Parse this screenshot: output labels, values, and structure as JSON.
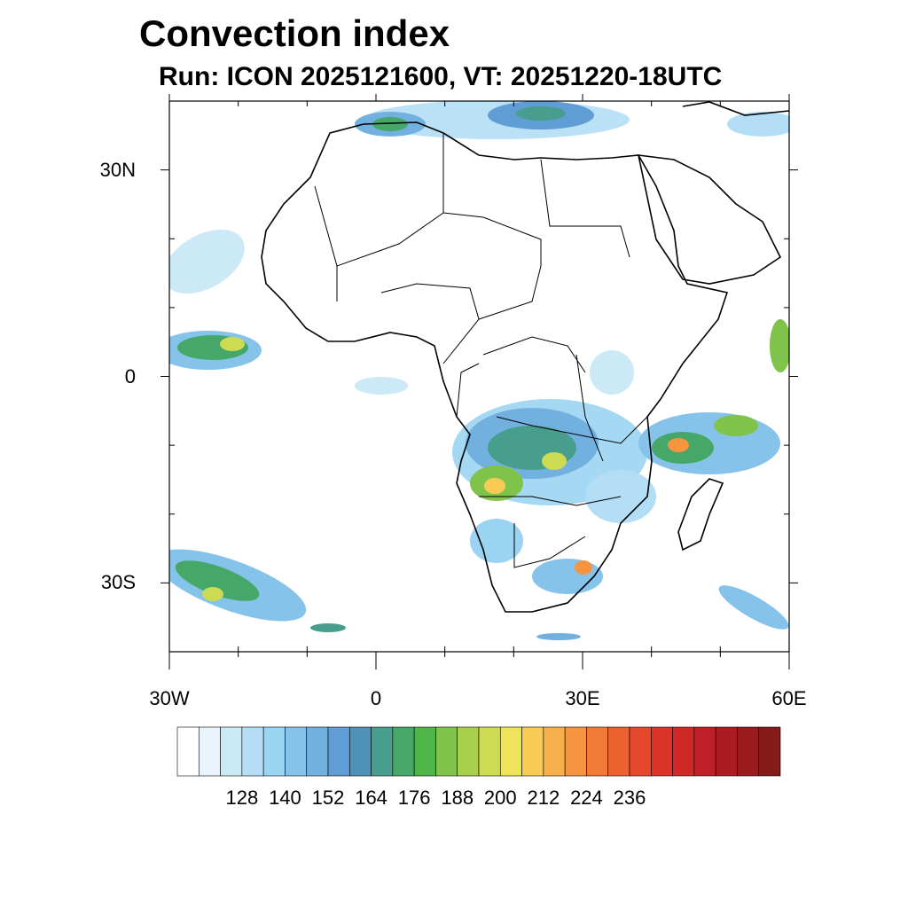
{
  "title": "Convection index",
  "subtitle": "Run: ICON 2025121600,  VT: 20251220-18UTC",
  "map": {
    "extent": {
      "lon_min": -30,
      "lon_max": 60,
      "lat_min": -40,
      "lat_max": 40
    },
    "lat_labels": [
      {
        "lat": 30,
        "text": "30N"
      },
      {
        "lat": 0,
        "text": "0"
      },
      {
        "lat": -30,
        "text": "30S"
      }
    ],
    "lon_labels": [
      {
        "lon": -30,
        "text": "30W"
      },
      {
        "lon": 0,
        "text": "0"
      },
      {
        "lon": 30,
        "text": "30E"
      },
      {
        "lon": 60,
        "text": "60E"
      }
    ]
  },
  "colorbar": {
    "labels": [
      "128",
      "140",
      "152",
      "164",
      "176",
      "188",
      "200",
      "212",
      "224",
      "236"
    ],
    "colors": [
      "#ffffff",
      "#e8f4fb",
      "#cce9f7",
      "#b3def5",
      "#9ad4f2",
      "#86c3ea",
      "#72b0e0",
      "#5f9dd4",
      "#4f92b8",
      "#479e8c",
      "#46a868",
      "#4eb548",
      "#80c34a",
      "#a8cf4c",
      "#cddb52",
      "#efe35a",
      "#f8cb55",
      "#f7b04b",
      "#f69440",
      "#f07a36",
      "#ec6130",
      "#e4492b",
      "#dc3328",
      "#d02727",
      "#bf1f26",
      "#ac1a22",
      "#991b1e",
      "#851a1a"
    ]
  }
}
